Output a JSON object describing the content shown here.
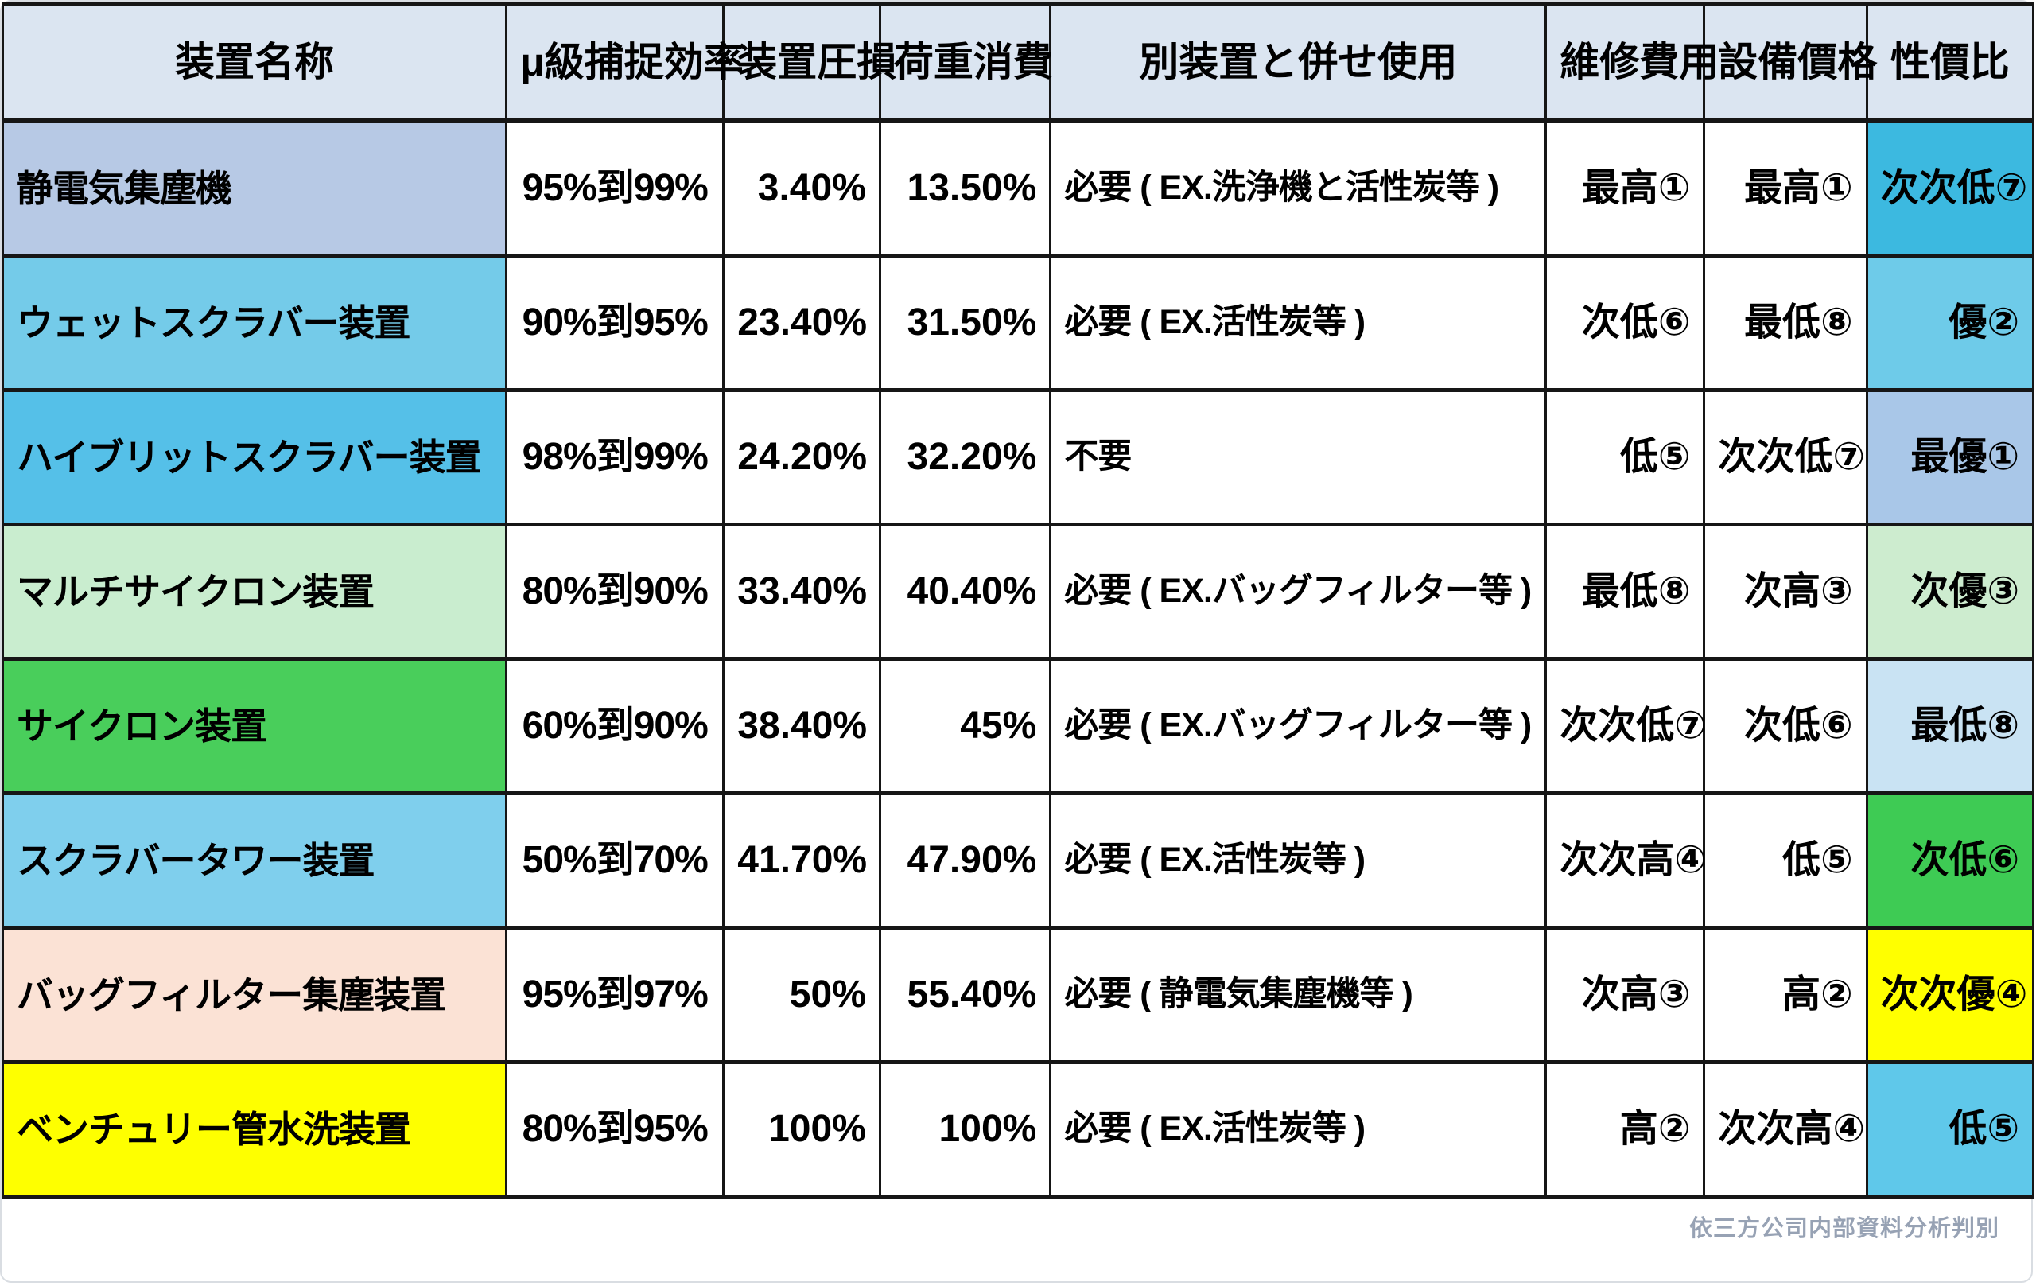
{
  "table": {
    "columns": [
      "装置名称",
      "μ級捕捉効率",
      "装置圧損",
      "荷重消費",
      "別装置と併せ使用",
      "維修費用",
      "設備價格",
      "性價比"
    ],
    "column_keys": [
      "device-name",
      "capture-efficiency",
      "pressure-loss",
      "load-consumption",
      "combined-use",
      "maintenance-cost",
      "equipment-price",
      "cost-performance"
    ],
    "rows": [
      {
        "cells": [
          "静電気集塵機",
          "95%到99%",
          "3.40%",
          "13.50%",
          "必要 ( EX.洗浄機と活性炭等 )",
          "最高①",
          "最高①",
          "次次低⑦"
        ],
        "name_bg": "#b7c9e5",
        "rating_bg": "#3cb9e0"
      },
      {
        "cells": [
          "ウェットスクラバー装置",
          "90%到95%",
          "23.40%",
          "31.50%",
          "必要 ( EX.活性炭等 )",
          "次低⑥",
          "最低⑧",
          "優②"
        ],
        "name_bg": "#74cbe9",
        "rating_bg": "#6ecbe9"
      },
      {
        "cells": [
          "ハイブリットスクラバー装置",
          "98%到99%",
          "24.20%",
          "32.20%",
          "不要",
          "低⑤",
          "次次低⑦",
          "最優①"
        ],
        "name_bg": "#55c0e8",
        "rating_bg": "#a9c7e8"
      },
      {
        "cells": [
          "マルチサイクロン装置",
          "80%到90%",
          "33.40%",
          "40.40%",
          "必要 ( EX.バッグフィルター等 )",
          "最低⑧",
          "次高③",
          "次優③"
        ],
        "name_bg": "#c9edcf",
        "rating_bg": "#cdeccf"
      },
      {
        "cells": [
          "サイクロン装置",
          "60%到90%",
          "38.40%",
          "45%",
          "必要 ( EX.バッグフィルター等 )",
          "次次低⑦",
          "次低⑥",
          "最低⑧"
        ],
        "name_bg": "#49ce5b",
        "rating_bg": "#c9e3f3"
      },
      {
        "cells": [
          "スクラバータワー装置",
          "50%到70%",
          "41.70%",
          "47.90%",
          "必要 ( EX.活性炭等 )",
          "次次高④",
          "低⑤",
          "次低⑥"
        ],
        "name_bg": "#7fcfed",
        "rating_bg": "#3ecb54"
      },
      {
        "cells": [
          "バッグフィルター集塵装置",
          "95%到97%",
          "50%",
          "55.40%",
          "必要 ( 静電気集塵機等 )",
          "次高③",
          "高②",
          "次次優④"
        ],
        "name_bg": "#fbe2d5",
        "rating_bg": "#ffff00"
      },
      {
        "cells": [
          "ベンチュリー管水洗装置",
          "80%到95%",
          "100%",
          "100%",
          "必要 ( EX.活性炭等 )",
          "高②",
          "次次高④",
          "低⑤"
        ],
        "name_bg": "#feff00",
        "rating_bg": "#5fc8ea"
      }
    ],
    "footer_note": "依三方公司内部資料分析判別"
  },
  "colors": {
    "header_bg": "#dbe5f1",
    "border": "#161616",
    "footer_text": "#97a2b4"
  },
  "chart_data": {
    "type": "table",
    "title": "",
    "columns": [
      "装置名称",
      "μ級捕捉効率",
      "装置圧損",
      "荷重消費",
      "別装置と併せ使用",
      "維修費用",
      "設備價格",
      "性價比"
    ],
    "rows": [
      [
        "静電気集塵機",
        "95%到99%",
        "3.40%",
        "13.50%",
        "必要 ( EX.洗浄機と活性炭等 )",
        "最高①",
        "最高①",
        "次次低⑦"
      ],
      [
        "ウェットスクラバー装置",
        "90%到95%",
        "23.40%",
        "31.50%",
        "必要 ( EX.活性炭等 )",
        "次低⑥",
        "最低⑧",
        "優②"
      ],
      [
        "ハイブリットスクラバー装置",
        "98%到99%",
        "24.20%",
        "32.20%",
        "不要",
        "低⑤",
        "次次低⑦",
        "最優①"
      ],
      [
        "マルチサイクロン装置",
        "80%到90%",
        "33.40%",
        "40.40%",
        "必要 ( EX.バッグフィルター等 )",
        "最低⑧",
        "次高③",
        "次優③"
      ],
      [
        "サイクロン装置",
        "60%到90%",
        "38.40%",
        "45%",
        "必要 ( EX.バッグフィルター等 )",
        "次次低⑦",
        "次低⑥",
        "最低⑧"
      ],
      [
        "スクラバータワー装置",
        "50%到70%",
        "41.70%",
        "47.90%",
        "必要 ( EX.活性炭等 )",
        "次次高④",
        "低⑤",
        "次低⑥"
      ],
      [
        "バッグフィルター集塵装置",
        "95%到97%",
        "50%",
        "55.40%",
        "必要 ( 静電気集塵機等 )",
        "次高③",
        "高②",
        "次次優④"
      ],
      [
        "ベンチュリー管水洗装置",
        "80%到95%",
        "100%",
        "100%",
        "必要 ( EX.活性炭等 )",
        "高②",
        "次次高④",
        "低⑤"
      ]
    ],
    "footnote": "依三方公司内部資料分析判別"
  }
}
